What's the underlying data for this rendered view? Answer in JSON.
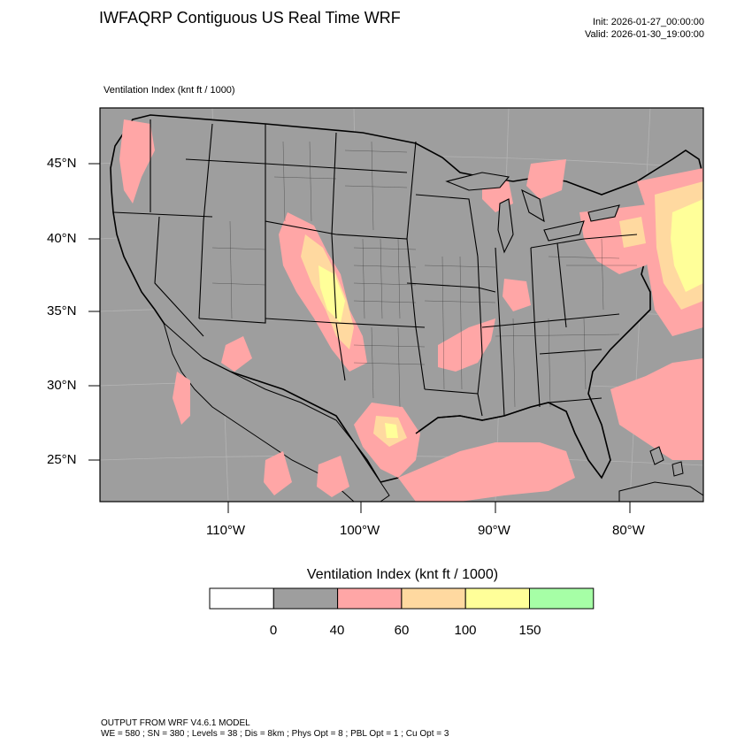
{
  "header": {
    "title": "IWFAQRP Contiguous US Real Time WRF",
    "init": "Init: 2026-01-27_00:00:00",
    "valid": "Valid: 2026-01-30_19:00:00"
  },
  "map": {
    "subtitle": "Ventilation Index   (knt ft / 1000)",
    "lat_labels": [
      "45°N",
      "40°N",
      "35°N",
      "30°N",
      "25°N"
    ],
    "lon_labels": [
      "110°W",
      "100°W",
      "90°W",
      "80°W"
    ],
    "colors": {
      "ocean_and_land_base": "#9e9e9e",
      "low": "#ffa6a6",
      "mid": "#ffd9a0",
      "high": "#ffff99",
      "border": "#000000"
    }
  },
  "colorbar": {
    "title": "Ventilation Index  (knt ft / 1000)",
    "colors": [
      "#ffffff",
      "#9e9e9e",
      "#ffa6a6",
      "#ffd9a0",
      "#ffff99",
      "#a6ffa6"
    ],
    "tick_labels": [
      "0",
      "40",
      "60",
      "100",
      "150"
    ]
  },
  "footer": {
    "line1": "OUTPUT FROM WRF V4.6.1 MODEL",
    "line2": "WE = 580 ; SN = 380 ; Levels = 38 ; Dis = 8km ; Phys Opt = 8 ; PBL Opt = 1 ; Cu Opt = 3"
  }
}
